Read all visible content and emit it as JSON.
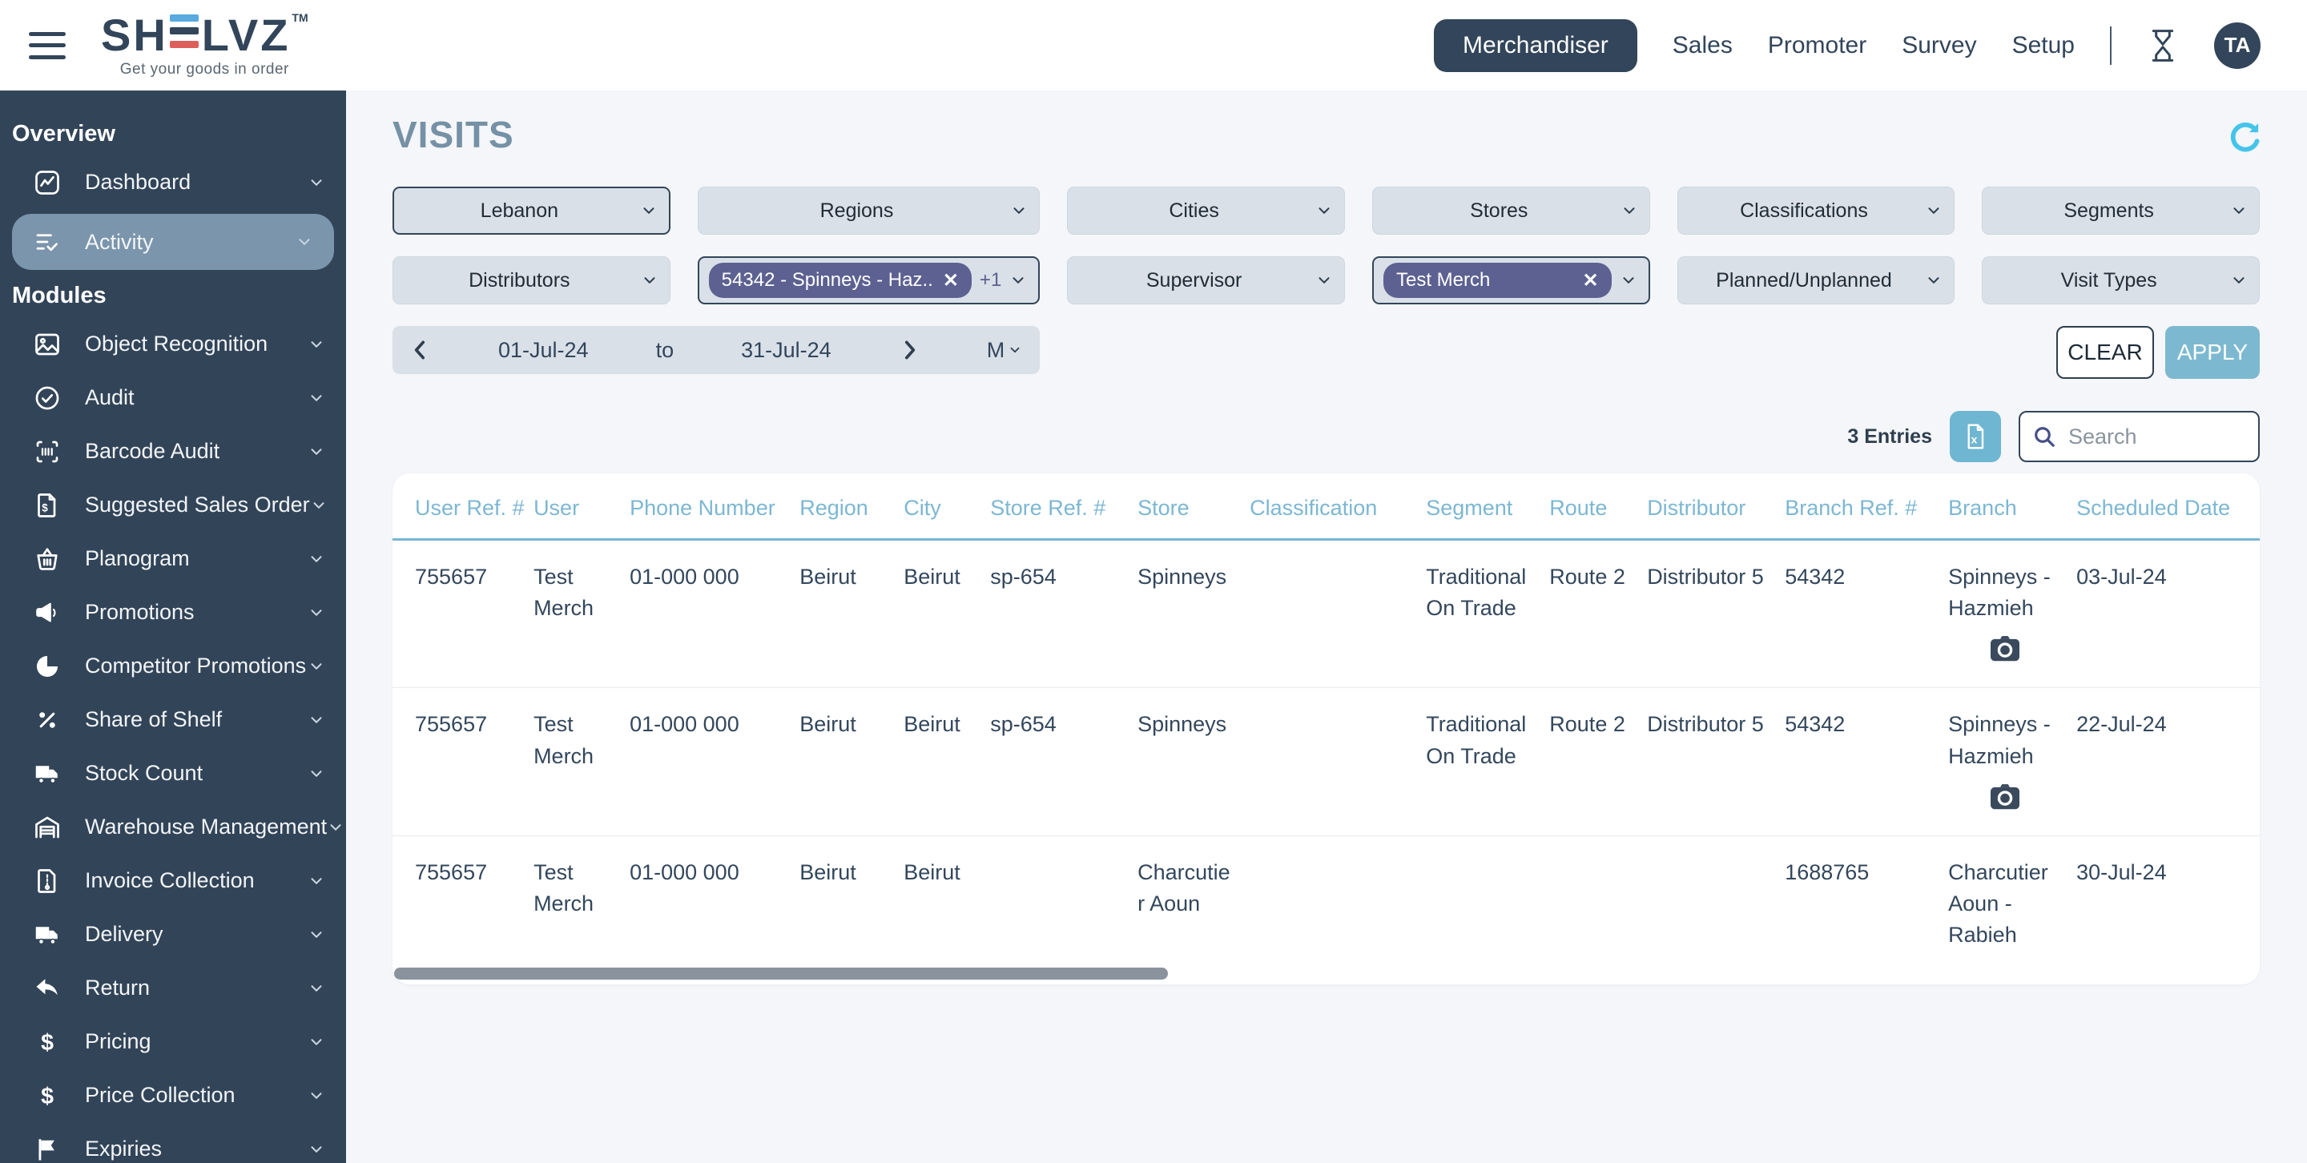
{
  "header": {
    "logo": {
      "brand_prefix": "SH",
      "brand_suffix": "LVZ",
      "trademark": "TM",
      "tagline": "Get your goods in order"
    },
    "nav": {
      "items": [
        {
          "label": "Merchandiser",
          "active": true
        },
        {
          "label": "Sales",
          "active": false
        },
        {
          "label": "Promoter",
          "active": false
        },
        {
          "label": "Survey",
          "active": false
        },
        {
          "label": "Setup",
          "active": false
        }
      ],
      "avatar": "TA"
    }
  },
  "sidebar": {
    "sections": [
      {
        "title": "Overview",
        "items": [
          {
            "label": "Dashboard",
            "icon": "dashboard-icon",
            "active": false
          },
          {
            "label": "Activity",
            "icon": "activity-icon",
            "active": true
          }
        ]
      },
      {
        "title": "Modules",
        "items": [
          {
            "label": "Object Recognition",
            "icon": "object-recognition-icon",
            "active": false
          },
          {
            "label": "Audit",
            "icon": "audit-icon",
            "active": false
          },
          {
            "label": "Barcode Audit",
            "icon": "barcode-audit-icon",
            "active": false
          },
          {
            "label": "Suggested Sales Order",
            "icon": "suggested-sales-order-icon",
            "active": false
          },
          {
            "label": "Planogram",
            "icon": "planogram-icon",
            "active": false
          },
          {
            "label": "Promotions",
            "icon": "promotions-icon",
            "active": false
          },
          {
            "label": "Competitor Promotions",
            "icon": "competitor-promotions-icon",
            "active": false
          },
          {
            "label": "Share of Shelf",
            "icon": "share-of-shelf-icon",
            "active": false
          },
          {
            "label": "Stock Count",
            "icon": "stock-count-icon",
            "active": false
          },
          {
            "label": "Warehouse Management",
            "icon": "warehouse-management-icon",
            "active": false
          },
          {
            "label": "Invoice Collection",
            "icon": "invoice-collection-icon",
            "active": false
          },
          {
            "label": "Delivery",
            "icon": "delivery-icon",
            "active": false
          },
          {
            "label": "Return",
            "icon": "return-icon",
            "active": false
          },
          {
            "label": "Pricing",
            "icon": "pricing-icon",
            "active": false
          },
          {
            "label": "Price Collection",
            "icon": "price-collection-icon",
            "active": false
          },
          {
            "label": "Expiries",
            "icon": "expiries-icon",
            "active": false
          }
        ]
      }
    ]
  },
  "main": {
    "title": "VISITS",
    "filters_row1": [
      {
        "label": "Lebanon",
        "selected": true
      },
      {
        "label": "Regions",
        "selected": false
      },
      {
        "label": "Cities",
        "selected": false
      },
      {
        "label": "Stores",
        "selected": false
      },
      {
        "label": "Classifications",
        "selected": false
      },
      {
        "label": "Segments",
        "selected": false
      }
    ],
    "filters_row2": [
      {
        "label": "Distributors",
        "selected": false
      },
      {
        "chip": "54342 - Spinneys - Haz..",
        "chip_remove": "✕",
        "extra": "+1",
        "selected": true
      },
      {
        "label": "Supervisor",
        "selected": false
      },
      {
        "chip": "Test Merch",
        "chip_remove": "✕",
        "selected": true
      },
      {
        "label": "Planned/Unplanned",
        "selected": false
      },
      {
        "label": "Visit Types",
        "selected": false
      }
    ],
    "date_range": {
      "start": "01-Jul-24",
      "separator": "to",
      "end": "31-Jul-24",
      "mode": "M"
    },
    "clear_label": "CLEAR",
    "apply_label": "APPLY",
    "entries_count": "3 Entries",
    "search_placeholder": "Search"
  },
  "table": {
    "columns": [
      "User Ref. #",
      "User",
      "Phone Number",
      "Region",
      "City",
      "Store Ref. #",
      "Store",
      "Classification",
      "Segment",
      "Route",
      "Distributor",
      "Branch Ref. #",
      "Branch",
      "Scheduled Date"
    ],
    "rows": [
      {
        "user_ref": "755657",
        "user": "Test Merch",
        "phone": "01-000 000",
        "region": "Beirut",
        "city": "Beirut",
        "store_ref": "sp-654",
        "store": "Spinneys",
        "classification": "",
        "segment": "Traditional On Trade",
        "route": "Route 2",
        "distributor": "Distributor 5",
        "branch_ref": "54342",
        "branch": "Spinneys - Hazmieh",
        "has_photo": true,
        "scheduled_date": "03-Jul-24"
      },
      {
        "user_ref": "755657",
        "user": "Test Merch",
        "phone": "01-000 000",
        "region": "Beirut",
        "city": "Beirut",
        "store_ref": "sp-654",
        "store": "Spinneys",
        "classification": "",
        "segment": "Traditional On Trade",
        "route": "Route 2",
        "distributor": "Distributor 5",
        "branch_ref": "54342",
        "branch": "Spinneys - Hazmieh",
        "has_photo": true,
        "scheduled_date": "22-Jul-24"
      },
      {
        "user_ref": "755657",
        "user": "Test Merch",
        "phone": "01-000 000",
        "region": "Beirut",
        "city": "Beirut",
        "store_ref": "",
        "store": "Charcutier Aoun",
        "classification": "",
        "segment": "",
        "route": "",
        "distributor": "",
        "branch_ref": "1688765",
        "branch": "Charcutier Aoun - Rabieh",
        "has_photo": false,
        "scheduled_date": "30-Jul-24"
      }
    ]
  },
  "colors": {
    "sidebar_bg": "#324458",
    "sidebar_active": "#7b95ac",
    "accent_table_header": "#7cb7d3",
    "chip_purple": "#5c6191",
    "apply_blue": "#7cb9d1",
    "refresh_cyan": "#45c4ea",
    "logo_blue": "#58aadf",
    "logo_red": "#dd5f5c",
    "navy": "#32455a"
  }
}
